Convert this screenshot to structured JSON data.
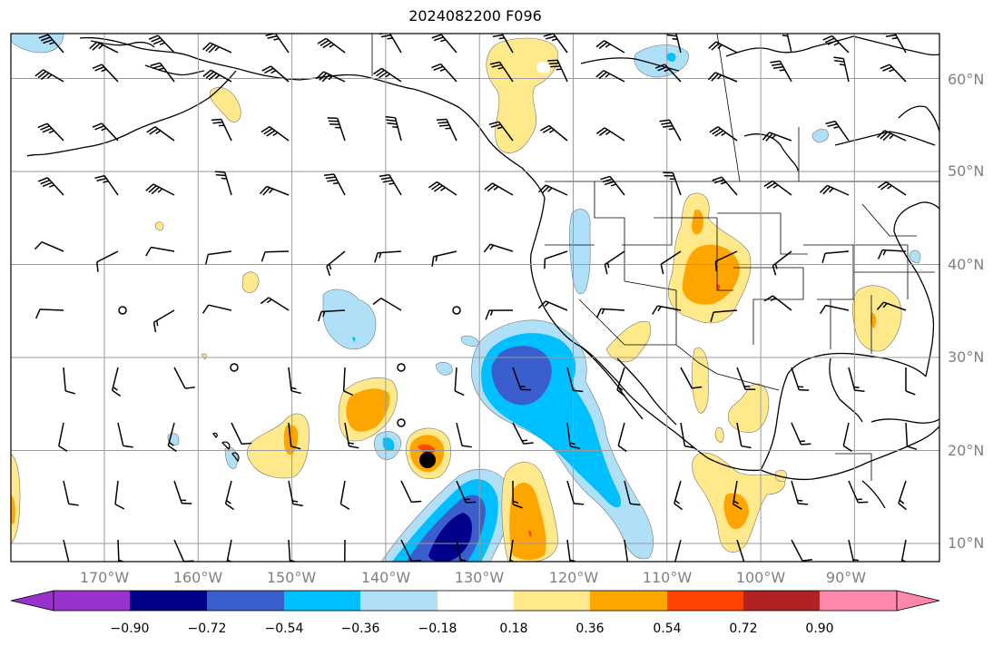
{
  "title": "2024082200 F096",
  "map": {
    "lon_range": [
      -178,
      -79
    ],
    "lat_range": [
      8,
      65
    ],
    "lat_ticks": [
      "10°N",
      "20°N",
      "30°N",
      "40°N",
      "50°N",
      "60°N"
    ],
    "lon_ticks": [
      "170°W",
      "160°W",
      "150°W",
      "140°W",
      "130°W",
      "120°W",
      "110°W",
      "100°W",
      "90°W"
    ],
    "grid": true,
    "land_outline_color": "#000000",
    "wind_barbs": true,
    "storm_marker": "black-dot"
  },
  "colorbar": {
    "labels": [
      "−0.90",
      "−0.72",
      "−0.54",
      "−0.36",
      "−0.18",
      "0.18",
      "0.36",
      "0.54",
      "0.72",
      "0.90"
    ],
    "colors": [
      "#9932cc",
      "#00008b",
      "#3a5fcd",
      "#00bfff",
      "#b0e0f8",
      "#ffffff",
      "#ffe98a",
      "#ffa500",
      "#ff4500",
      "#b22222",
      "#ff88aa"
    ],
    "extend": "both"
  }
}
